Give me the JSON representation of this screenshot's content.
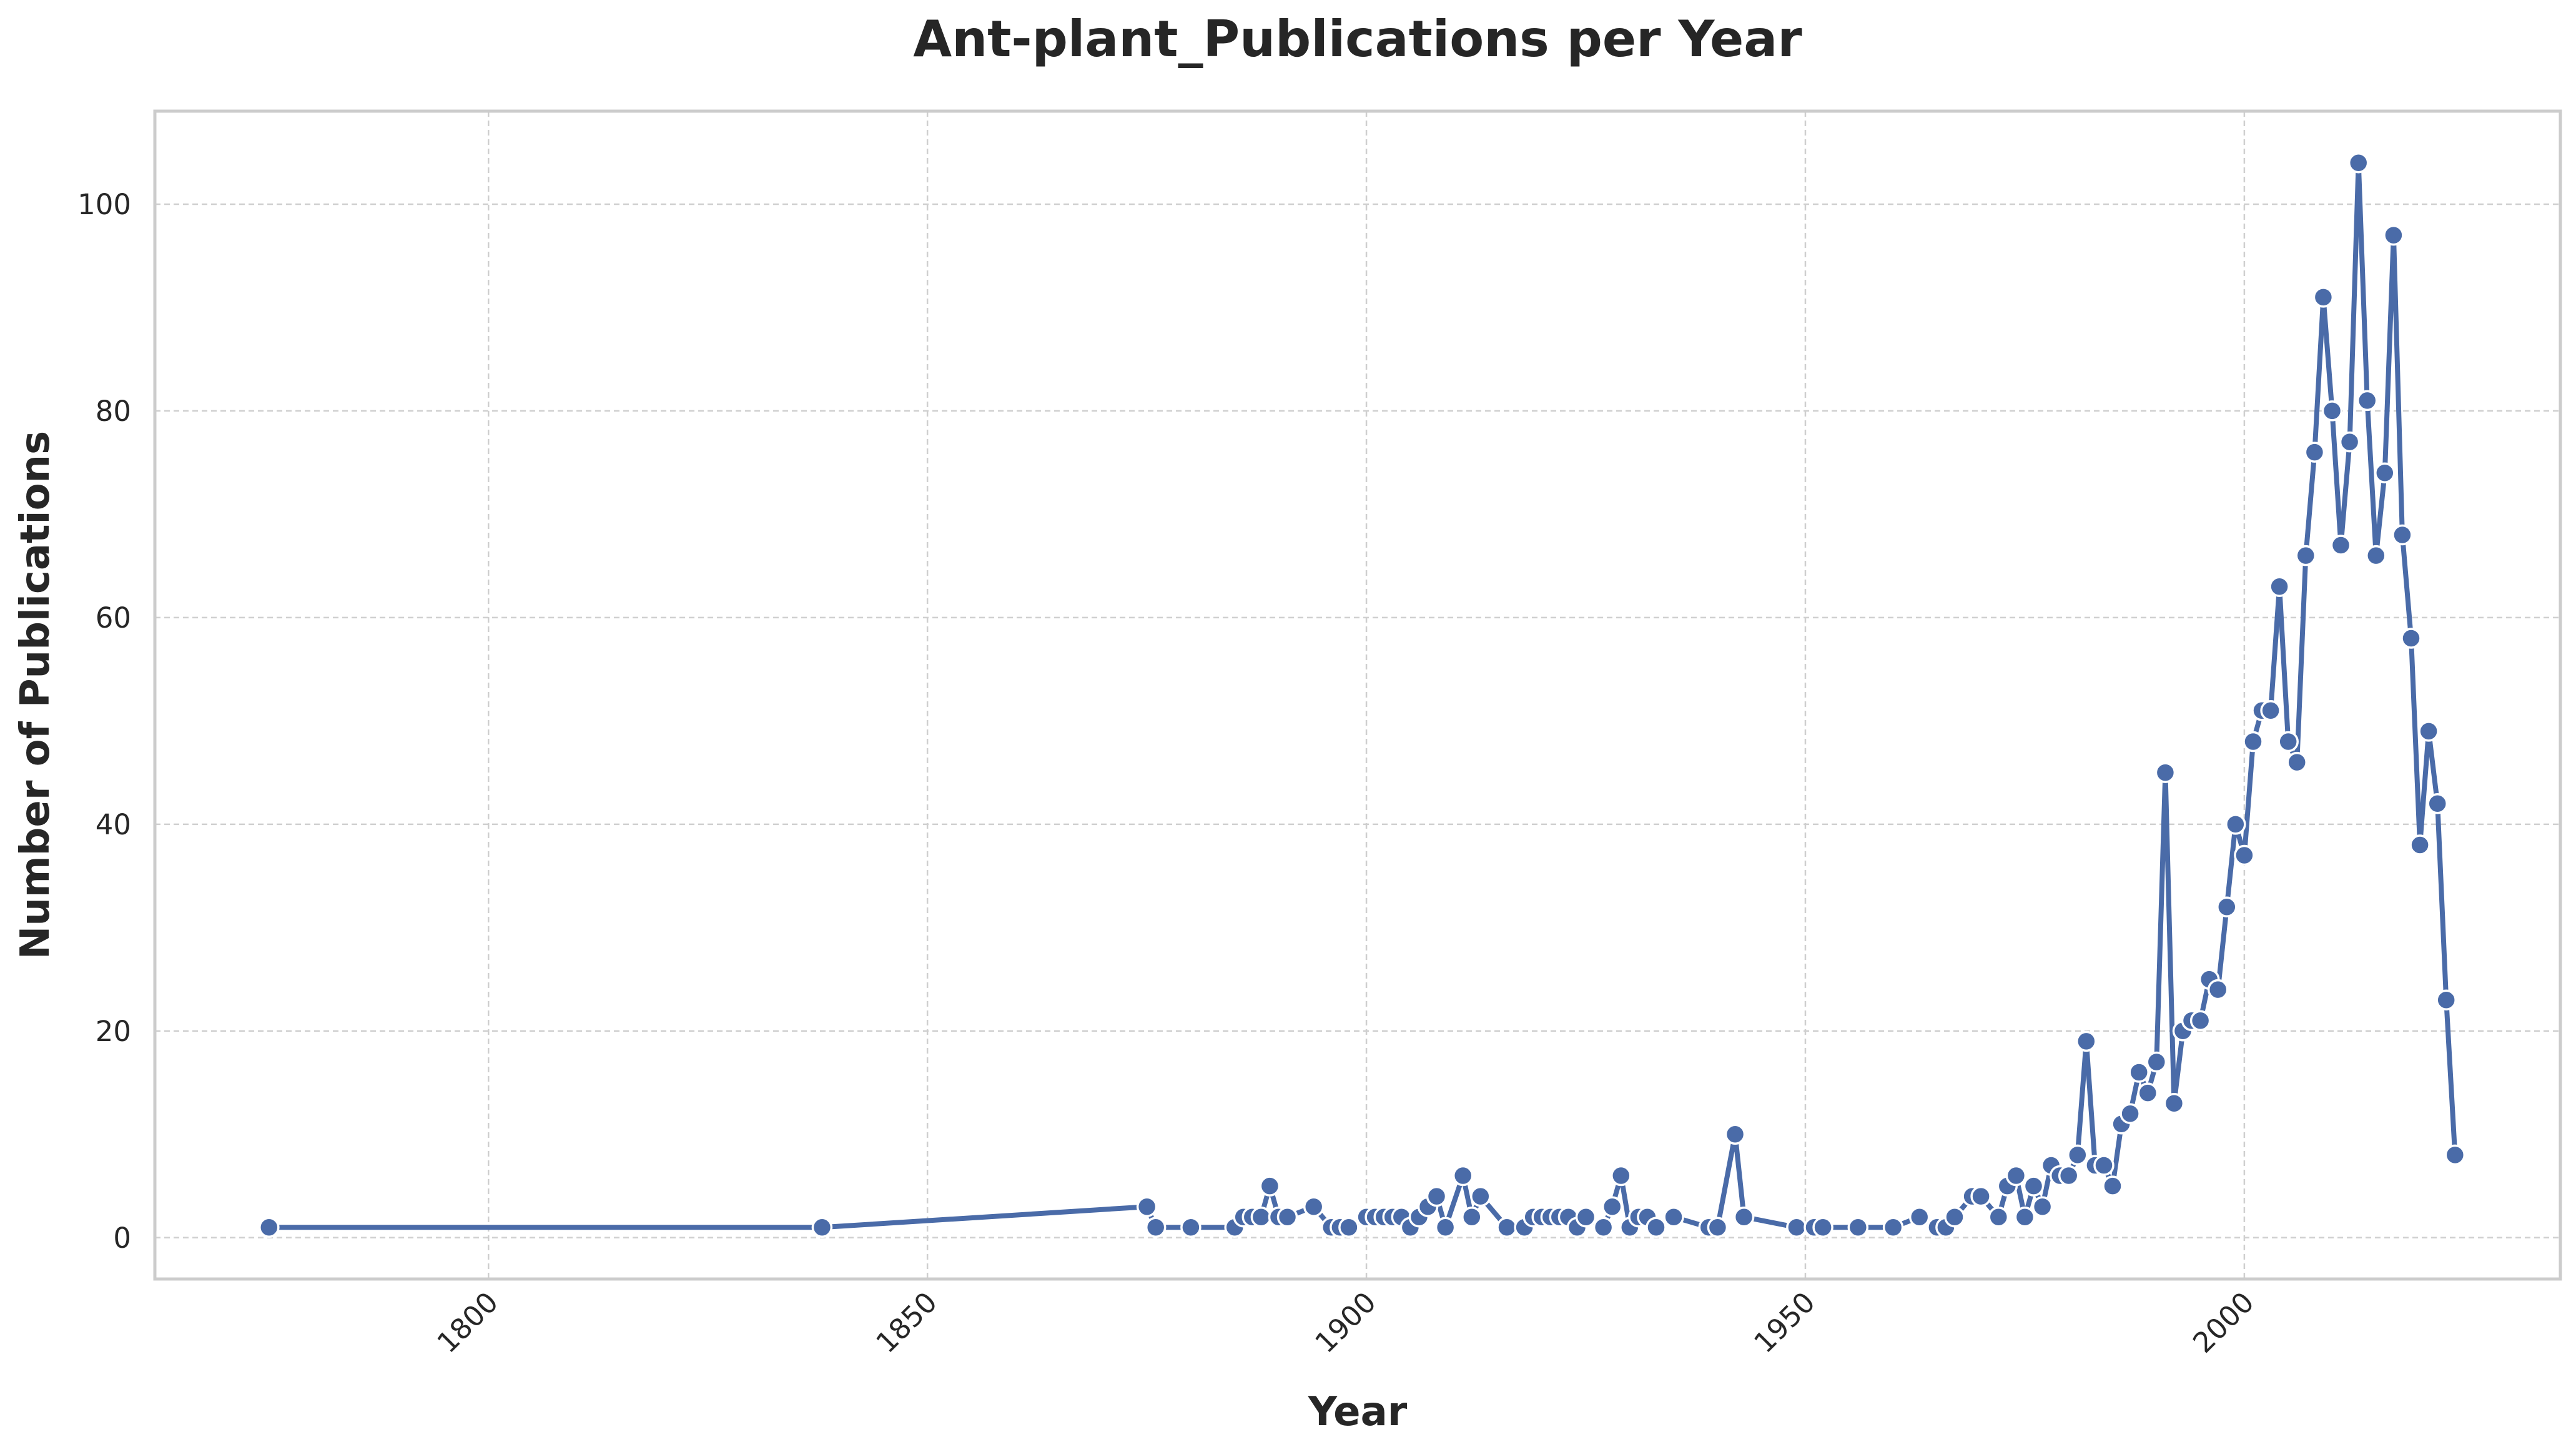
{
  "colors": {
    "series": "#4a6ba8",
    "background": "#ffffff",
    "grid": "#cfcfcf",
    "frame": "#cccccc",
    "text": "#262626"
  },
  "chart_data": {
    "type": "line",
    "title": "Ant-plant_Publications per Year",
    "xlabel": "Year",
    "ylabel": "Number of Publications",
    "xlim": [
      1762,
      2036
    ],
    "ylim": [
      -4,
      109
    ],
    "xticks": [
      1800,
      1850,
      1900,
      1950,
      2000
    ],
    "xtick_labels": [
      "1800",
      "1850",
      "1900",
      "1950",
      "2000"
    ],
    "xtick_rotation": 45,
    "yticks": [
      0,
      20,
      40,
      60,
      80,
      100
    ],
    "ytick_labels": [
      "0",
      "20",
      "40",
      "60",
      "80",
      "100"
    ],
    "grid": true,
    "legend": "none",
    "series": [
      {
        "x": [
          1775,
          1838,
          1875,
          1876,
          1880,
          1885,
          1886,
          1887,
          1888,
          1889,
          1890,
          1891,
          1894,
          1896,
          1897,
          1898,
          1900,
          1901,
          1902,
          1903,
          1904,
          1905,
          1906,
          1907,
          1908,
          1909,
          1911,
          1912,
          1913,
          1916,
          1918,
          1919,
          1920,
          1921,
          1922,
          1923,
          1924,
          1925,
          1927,
          1928,
          1929,
          1930,
          1931,
          1932,
          1933,
          1935,
          1939,
          1940,
          1942,
          1943,
          1949,
          1951,
          1952,
          1956,
          1960,
          1963,
          1965,
          1966,
          1967,
          1969,
          1970,
          1972,
          1973,
          1974,
          1975,
          1976,
          1977,
          1978,
          1979,
          1980,
          1981,
          1982,
          1983,
          1984,
          1985,
          1986,
          1987,
          1988,
          1989,
          1990,
          1991,
          1992,
          1993,
          1994,
          1995,
          1996,
          1997,
          1998,
          1999,
          2000,
          2001,
          2002,
          2003,
          2004,
          2005,
          2006,
          2007,
          2008,
          2009,
          2010,
          2011,
          2012,
          2013,
          2014,
          2015,
          2016,
          2017,
          2018,
          2019,
          2020,
          2021,
          2022,
          2023,
          2024
        ],
        "y": [
          1,
          1,
          3,
          1,
          1,
          1,
          2,
          2,
          2,
          5,
          2,
          2,
          3,
          1,
          1,
          1,
          2,
          2,
          2,
          2,
          2,
          1,
          2,
          3,
          4,
          1,
          6,
          2,
          4,
          1,
          1,
          2,
          2,
          2,
          2,
          2,
          1,
          2,
          1,
          3,
          6,
          1,
          2,
          2,
          1,
          2,
          1,
          1,
          10,
          2,
          1,
          1,
          1,
          1,
          1,
          2,
          1,
          1,
          2,
          4,
          4,
          2,
          5,
          6,
          2,
          5,
          3,
          7,
          6,
          6,
          8,
          19,
          7,
          7,
          5,
          11,
          12,
          16,
          14,
          17,
          45,
          13,
          20,
          21,
          21,
          25,
          24,
          32,
          40,
          37,
          48,
          51,
          51,
          63,
          48,
          46,
          66,
          76,
          91,
          80,
          67,
          77,
          104,
          81,
          66,
          74,
          97,
          68,
          58,
          38,
          49,
          42,
          23,
          8
        ]
      }
    ]
  }
}
